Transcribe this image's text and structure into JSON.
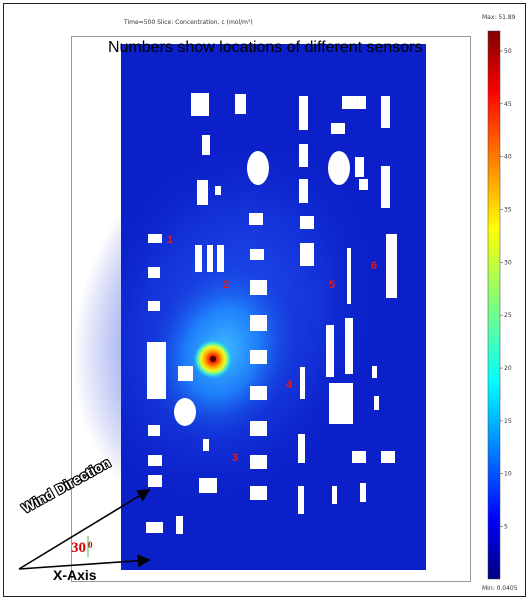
{
  "header": {
    "time_text": "Time=500   Slice: Concentration, c (mol/m³)"
  },
  "plot": {
    "subtitle": "Numbers show locations of different sensors",
    "background_color": "#0b20c8",
    "obstacle_color": "#ffffff",
    "sensor_color": "#e41b17",
    "sensors": [
      "1",
      "2",
      "3",
      "4",
      "5",
      "6"
    ]
  },
  "colorbar": {
    "max_label": "Max: 51.89",
    "min_label": "Min: 0.0405",
    "ticks": [
      "50",
      "45",
      "40",
      "35",
      "30",
      "25",
      "20",
      "15",
      "10",
      "5"
    ],
    "tick_values": [
      50,
      45,
      40,
      35,
      30,
      25,
      20,
      15,
      10,
      5
    ],
    "min": 0.0405,
    "max": 51.89,
    "colormap": "jet"
  },
  "annotations": {
    "wind_direction": "Wind Direction",
    "angle": "30",
    "degree": "0",
    "x_axis": "X-Axis"
  }
}
